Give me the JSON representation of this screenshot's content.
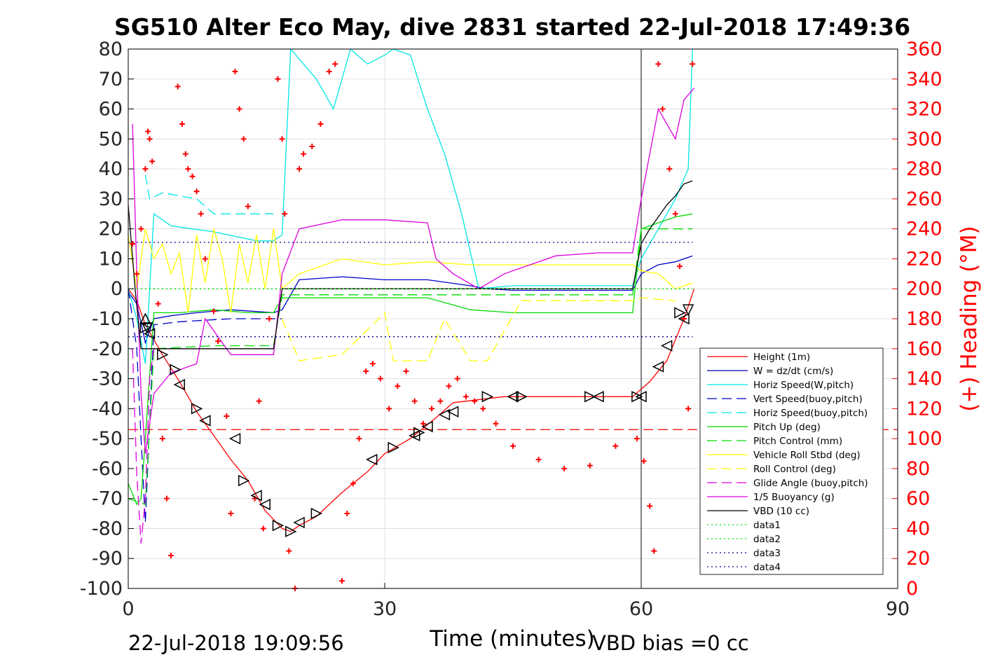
{
  "chart_data": {
    "type": "line",
    "title": "SG510 Alter Eco May, dive 2831 started 22-Jul-2018 17:49:36",
    "xlabel": "Time (minutes)",
    "ylabel_right": "(+) Heading (°M)",
    "xlim": [
      0,
      90
    ],
    "ylim": [
      -100,
      80
    ],
    "ylim_right": [
      0,
      360
    ],
    "x_ticks": [
      "0",
      "30",
      "60",
      "90"
    ],
    "y_ticks": [
      "80",
      "70",
      "60",
      "50",
      "40",
      "30",
      "20",
      "10",
      "0",
      "-10",
      "-20",
      "-30",
      "-40",
      "-50",
      "-60",
      "-70",
      "-80",
      "-90",
      "-100"
    ],
    "y_ticks_right": [
      "360",
      "340",
      "320",
      "300",
      "280",
      "260",
      "240",
      "220",
      "200",
      "180",
      "160",
      "140",
      "120",
      "100",
      "80",
      "60",
      "40",
      "20",
      "0"
    ],
    "grid": true,
    "legend_position": "bottom-right",
    "footer_left": "22-Jul-2018 19:09:56",
    "footer_right": "VBD bias =0 cc",
    "colors": {
      "red": "#ff0000",
      "blue": "#0000cc",
      "cyan": "#00e5e5",
      "green": "#00dd00",
      "yellow": "#ffff00",
      "magenta": "#dd00dd",
      "black": "#000000",
      "darkblue": "#000099"
    },
    "legend": [
      {
        "label": "Height (1m)",
        "color": "#ff0000",
        "dash": "solid"
      },
      {
        "label": "W = dz/dt (cm/s)",
        "color": "#0000cc",
        "dash": "solid"
      },
      {
        "label": "Horiz Speed(W,pitch)",
        "color": "#00e5e5",
        "dash": "solid"
      },
      {
        "label": "Vert Speed(buoy,pitch)",
        "color": "#0000cc",
        "dash": "dashed"
      },
      {
        "label": "Horiz Speed(buoy,pitch)",
        "color": "#00e5e5",
        "dash": "dashed"
      },
      {
        "label": "Pitch Up (deg)",
        "color": "#00dd00",
        "dash": "solid"
      },
      {
        "label": "Pitch Control (mm)",
        "color": "#00dd00",
        "dash": "dashed"
      },
      {
        "label": "Vehicle Roll Stbd (deg)",
        "color": "#ffff00",
        "dash": "solid"
      },
      {
        "label": "Roll Control (deg)",
        "color": "#ffff00",
        "dash": "dashed"
      },
      {
        "label": "Glide Angle (buoy,pitch)",
        "color": "#dd00dd",
        "dash": "dashed"
      },
      {
        "label": "1/5 Buoyancy (g)",
        "color": "#dd00dd",
        "dash": "solid"
      },
      {
        "label": "VBD (10 cc)",
        "color": "#000000",
        "dash": "solid"
      },
      {
        "label": "data1",
        "color": "#00dd00",
        "dash": "dotted"
      },
      {
        "label": "data2",
        "color": "#00dd00",
        "dash": "dotted"
      },
      {
        "label": "data3",
        "color": "#000099",
        "dash": "dotted"
      },
      {
        "label": "data4",
        "color": "#000099",
        "dash": "dotted"
      }
    ],
    "series": [
      {
        "name": "Height (1m)",
        "color": "#ff0000",
        "dash": "solid",
        "x": [
          0,
          1,
          2,
          4,
          6,
          8,
          10,
          12,
          14,
          16,
          18,
          19,
          20,
          22,
          25,
          28,
          30,
          33,
          36,
          38,
          44,
          50,
          56,
          59,
          61,
          63,
          65,
          66.2
        ],
        "y": [
          0,
          -4,
          -12,
          -22,
          -31,
          -41,
          -49,
          -57,
          -64,
          -74,
          -80,
          -81,
          -79,
          -76,
          -68,
          -61,
          -55,
          -50,
          -43,
          -38,
          -36,
          -36,
          -36,
          -36,
          -31,
          -24,
          -10,
          0
        ]
      },
      {
        "name": "W = dz/dt (cm/s)",
        "color": "#0000cc",
        "dash": "solid",
        "x": [
          0,
          1,
          2,
          3,
          5,
          8,
          12,
          17,
          18,
          20,
          25,
          30,
          35,
          40,
          42,
          45,
          50,
          55,
          59,
          60,
          62,
          64,
          66
        ],
        "y": [
          -1,
          -5,
          -18,
          -10,
          -9,
          -8,
          -7,
          -8,
          -7,
          3,
          4,
          3,
          3,
          1,
          0,
          -0.5,
          -0.5,
          -0.5,
          -0.5,
          5,
          8,
          9,
          11
        ]
      },
      {
        "name": "Horiz Speed(W,pitch)",
        "color": "#00e5e5",
        "dash": "solid",
        "x": [
          0,
          1,
          2,
          3,
          5,
          10,
          15,
          17,
          18,
          19,
          22,
          24,
          26,
          28,
          30,
          31,
          33,
          35,
          37,
          39,
          41,
          45,
          50,
          55,
          59,
          60,
          62,
          64,
          65.5,
          66
        ],
        "y": [
          0,
          -10,
          -25,
          25,
          21,
          19,
          16,
          16,
          18,
          80,
          70,
          60,
          80,
          75,
          78,
          80,
          78,
          60,
          45,
          25,
          0,
          1,
          1,
          1,
          1,
          10,
          20,
          30,
          40,
          80
        ]
      },
      {
        "name": "Vert Speed(buoy,pitch)",
        "color": "#0000cc",
        "dash": "dashed",
        "x": [
          0,
          1,
          1.5,
          2,
          3,
          6,
          12,
          17,
          18
        ],
        "y": [
          0,
          -20,
          -50,
          -78,
          -12,
          -11,
          -10,
          -10,
          -10
        ]
      },
      {
        "name": "Horiz Speed(buoy,pitch)",
        "color": "#00e5e5",
        "dash": "dashed",
        "x": [
          2,
          2.5,
          4,
          8,
          10,
          14,
          17
        ],
        "y": [
          38,
          30,
          32,
          30,
          25,
          25,
          25
        ]
      },
      {
        "name": "Pitch Up (deg)",
        "color": "#00dd00",
        "dash": "solid",
        "x": [
          0,
          1,
          1.5,
          2,
          3,
          6,
          10,
          14,
          17,
          18,
          20,
          25,
          30,
          35,
          40,
          45,
          50,
          55,
          59,
          60,
          62,
          64,
          66
        ],
        "y": [
          -65,
          -72,
          -70,
          -50,
          -8,
          -8,
          -7,
          -8,
          -8,
          -3,
          -3,
          -3,
          -3,
          -3,
          -7,
          -8,
          -8,
          -8,
          -8,
          20,
          22,
          24,
          25
        ]
      },
      {
        "name": "Pitch Control (mm)",
        "color": "#00dd00",
        "dash": "dashed",
        "x": [
          0,
          2,
          3,
          10,
          17,
          18,
          30,
          40,
          59,
          60,
          66
        ],
        "y": [
          -70,
          -72,
          -20,
          -19,
          -19,
          -2,
          -2,
          -2,
          -2,
          20,
          20
        ]
      },
      {
        "name": "Vehicle Roll Stbd (deg)",
        "color": "#ffff00",
        "dash": "solid",
        "x": [
          0,
          1,
          2,
          3,
          4,
          5,
          6,
          7,
          8,
          9,
          10,
          11,
          12,
          13,
          14,
          15,
          16,
          17,
          18,
          20,
          25,
          30,
          35,
          40,
          45,
          50,
          55,
          59,
          60,
          62,
          64,
          66
        ],
        "y": [
          18,
          0,
          20,
          10,
          15,
          5,
          12,
          -8,
          18,
          2,
          20,
          10,
          -8,
          15,
          2,
          18,
          0,
          20,
          0,
          5,
          10,
          8,
          9,
          8,
          8,
          8,
          8,
          8,
          6,
          5,
          0,
          2
        ]
      },
      {
        "name": "Roll Control (deg)",
        "color": "#ffff00",
        "dash": "dashed",
        "x": [
          18,
          20,
          25,
          30,
          31,
          35,
          37,
          40,
          42,
          46,
          50,
          55,
          59,
          60,
          64
        ],
        "y": [
          -10,
          -24,
          -22,
          -8,
          -24,
          -24,
          -10,
          -24,
          -24,
          -4,
          -4,
          -4,
          -4,
          -3,
          -4
        ]
      },
      {
        "name": "Glide Angle (buoy,pitch)",
        "color": "#dd00dd",
        "dash": "dashed",
        "x": [
          0.5,
          1,
          1.5,
          2,
          2.5,
          3
        ],
        "y": [
          -20,
          -62,
          -85,
          -70,
          -30,
          -20
        ]
      },
      {
        "name": "1/5 Buoyancy (g)",
        "color": "#dd00dd",
        "dash": "solid",
        "x": [
          0.5,
          1,
          1.5,
          2,
          3,
          5,
          8,
          9,
          12,
          15,
          17,
          18,
          20,
          25,
          30,
          35,
          36,
          38,
          41,
          44,
          50,
          55,
          59,
          60,
          62,
          64,
          65,
          66.2
        ],
        "y": [
          55,
          5,
          -35,
          -55,
          -35,
          -28,
          -25,
          -10,
          -22,
          -22,
          -22,
          5,
          20,
          23,
          23,
          22,
          10,
          5,
          0,
          5,
          11,
          12,
          12,
          30,
          60,
          50,
          63,
          67
        ]
      },
      {
        "name": "VBD (10 cc)",
        "color": "#000000",
        "dash": "solid",
        "x": [
          0,
          0.8,
          1.5,
          5,
          10,
          17,
          18,
          20,
          30,
          40,
          50,
          59,
          60,
          61,
          62,
          63,
          64,
          65,
          66
        ],
        "y": [
          28,
          0,
          -20,
          -20,
          -20,
          -20,
          0,
          0,
          0,
          0,
          0,
          0,
          15,
          20,
          24,
          28,
          31,
          35,
          36
        ]
      },
      {
        "name": "data1",
        "color": "#00dd00",
        "dash": "dotted",
        "x": [
          0,
          66
        ],
        "y": [
          0,
          0
        ]
      },
      {
        "name": "data2",
        "color": "#00dd00",
        "dash": "dotted",
        "x": [
          0,
          66
        ],
        "y": [
          0,
          0
        ]
      },
      {
        "name": "data3",
        "color": "#000099",
        "dash": "dotted",
        "x": [
          0,
          66
        ],
        "y": [
          15.5,
          15.5
        ]
      },
      {
        "name": "data4",
        "color": "#000099",
        "dash": "dotted",
        "x": [
          0,
          66
        ],
        "y": [
          -16,
          -16
        ]
      }
    ],
    "heading_series": {
      "name": "(+) Heading",
      "color": "#ff0000",
      "marker": "+",
      "x": [
        0.5,
        1.0,
        1.5,
        2.0,
        2.3,
        2.5,
        2.8,
        3.5,
        4.0,
        4.5,
        5.0,
        5.8,
        6.3,
        6.7,
        7.0,
        7.5,
        8.0,
        8.5,
        9.0,
        10.0,
        10.5,
        11.5,
        12.0,
        12.5,
        13.0,
        13.5,
        14.0,
        14.8,
        15.3,
        15.8,
        16.5,
        17.5,
        18.0,
        18.3,
        18.8,
        19.5,
        20.0,
        20.5,
        21.5,
        22.5,
        23.5,
        24.2,
        25.0,
        25.6,
        26.3,
        27.0,
        27.8,
        28.6,
        29.5,
        30.5,
        31.5,
        32.5,
        33.5,
        34.5,
        35.5,
        36.5,
        37.5,
        38.5,
        39.5,
        40.5,
        41.5,
        43.0,
        45.0,
        48.0,
        51.0,
        54.0,
        57.0,
        59.5,
        60.3,
        61.0,
        61.5,
        62.0,
        62.5,
        63.3,
        64.0,
        64.5,
        65.0,
        65.5,
        66.0
      ],
      "y": [
        230,
        210,
        240,
        280,
        305,
        300,
        285,
        190,
        100,
        60,
        22,
        335,
        310,
        290,
        280,
        275,
        265,
        250,
        220,
        185,
        165,
        115,
        50,
        345,
        320,
        300,
        255,
        60,
        125,
        40,
        180,
        340,
        300,
        250,
        25,
        0,
        280,
        290,
        295,
        310,
        345,
        350,
        5,
        50,
        70,
        100,
        145,
        150,
        140,
        120,
        135,
        145,
        125,
        110,
        120,
        125,
        135,
        140,
        128,
        125,
        120,
        110,
        95,
        86,
        80,
        82,
        95,
        100,
        85,
        55,
        25,
        350,
        320,
        280,
        250,
        215,
        180,
        120,
        350
      ]
    },
    "markers": {
      "right": {
        "x": [
          2,
          4,
          5.5,
          8,
          13.5,
          17.5,
          19,
          22,
          31,
          34,
          42,
          46,
          54,
          59.5,
          64.5
        ],
        "y": [
          -13,
          -22,
          -27,
          -40,
          -64,
          -79,
          -81,
          -75,
          -53,
          -48,
          -36,
          -36,
          -36,
          -36,
          -8
        ]
      },
      "left": {
        "x": [
          2.5,
          6,
          9,
          12.5,
          15,
          16,
          20,
          28.5,
          33.5,
          35,
          37,
          38,
          45,
          55,
          60,
          62,
          63,
          65
        ],
        "y": [
          -15,
          -32,
          -44,
          -50,
          -69,
          -72,
          -78,
          -57,
          -49,
          -46,
          -42,
          -41,
          -36,
          -36,
          -36,
          -26,
          -19,
          -10
        ]
      },
      "up": {
        "x": [
          2
        ],
        "y": [
          -10
        ]
      },
      "down": {
        "x": [
          2.2,
          65.5
        ],
        "y": [
          -13,
          -7
        ]
      }
    }
  }
}
